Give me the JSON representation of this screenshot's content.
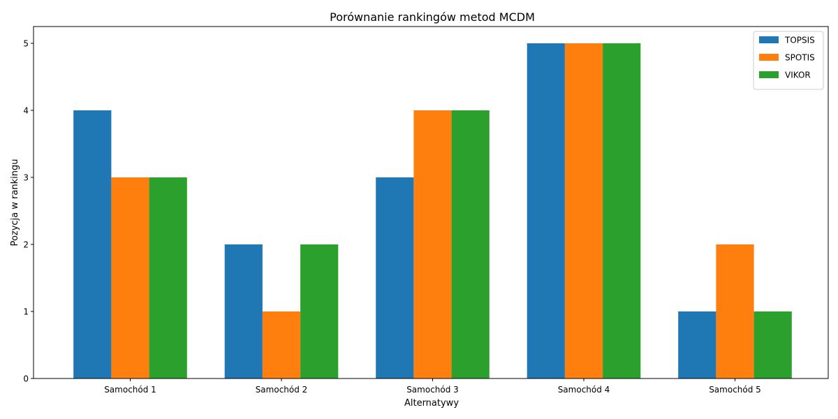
{
  "chart_data": {
    "type": "bar",
    "title": "Porównanie rankingów metod MCDM",
    "xlabel": "Alternatywy",
    "ylabel": "Pozycja w rankingu",
    "categories": [
      "Samochód 1",
      "Samochód 2",
      "Samochód 3",
      "Samochód 4",
      "Samochód 5"
    ],
    "series": [
      {
        "name": "TOPSIS",
        "color": "#1f77b4",
        "values": [
          4,
          2,
          3,
          5,
          1
        ]
      },
      {
        "name": "SPOTIS",
        "color": "#ff7f0e",
        "values": [
          3,
          1,
          4,
          5,
          2
        ]
      },
      {
        "name": "VIKOR",
        "color": "#2ca02c",
        "values": [
          3,
          2,
          4,
          5,
          1
        ]
      }
    ],
    "ylim": [
      0,
      5.25
    ],
    "yticks": [
      0,
      1,
      2,
      3,
      4,
      5
    ],
    "grid": false,
    "legend_position": "top-right"
  }
}
